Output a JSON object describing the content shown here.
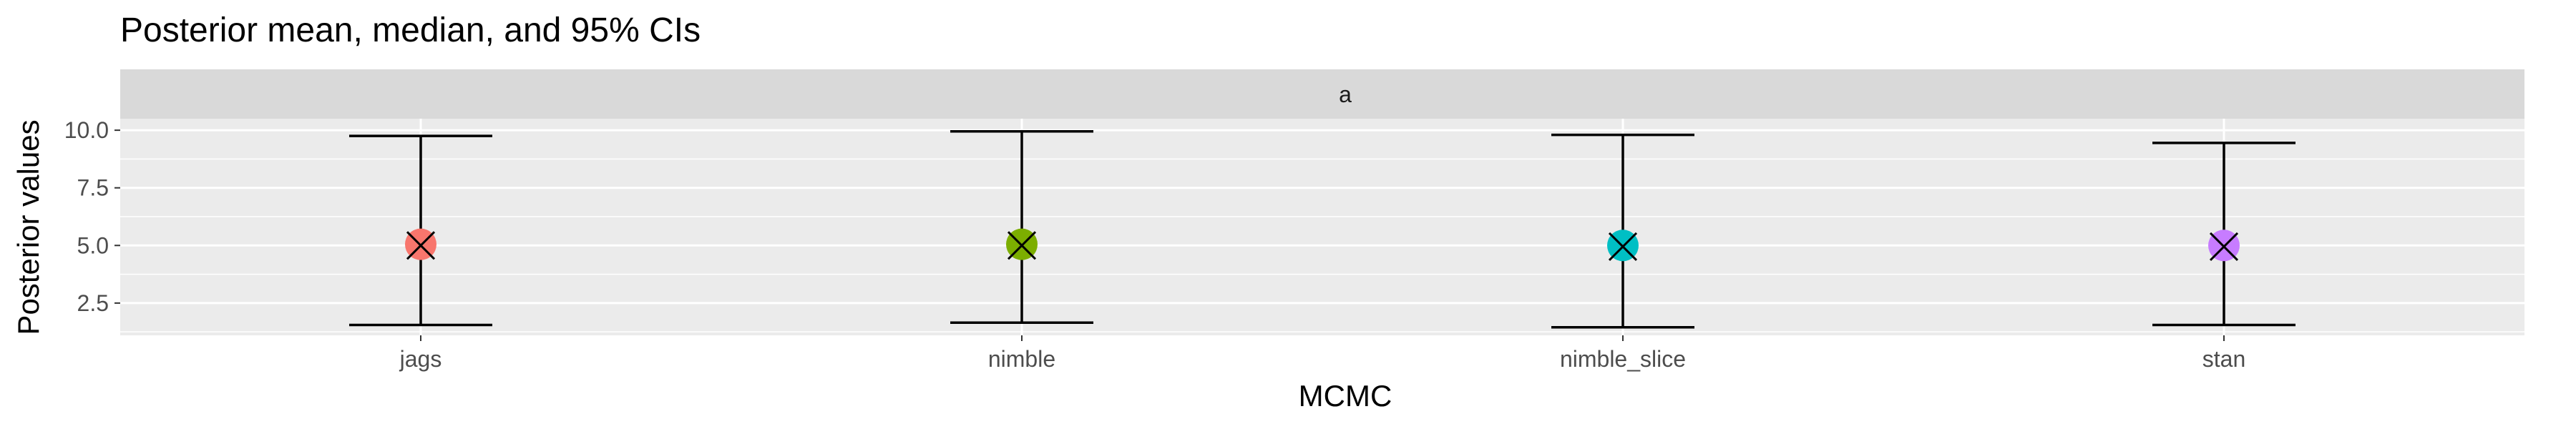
{
  "chart_data": {
    "type": "scatter",
    "title": "Posterior mean, median, and 95% CIs",
    "facet_label": "a",
    "xlabel": "MCMC",
    "ylabel": "Posterior values",
    "categories": [
      "jags",
      "nimble",
      "nimble_slice",
      "stan"
    ],
    "y_ticks": [
      "2.5",
      "5.0",
      "7.5",
      "10.0"
    ],
    "ylim": [
      1.1,
      10.5
    ],
    "grid": true,
    "legend": "none",
    "series": [
      {
        "category": "jags",
        "mean": 5.05,
        "median": 5.0,
        "lower": 1.55,
        "upper": 9.75,
        "color": "#F8766D"
      },
      {
        "category": "nimble",
        "mean": 5.05,
        "median": 5.0,
        "lower": 1.65,
        "upper": 9.95,
        "color": "#7CAE00"
      },
      {
        "category": "nimble_slice",
        "mean": 5.0,
        "median": 4.95,
        "lower": 1.45,
        "upper": 9.8,
        "color": "#00BFC4"
      },
      {
        "category": "stan",
        "mean": 5.0,
        "median": 4.95,
        "lower": 1.55,
        "upper": 9.45,
        "color": "#C77CFF"
      }
    ]
  }
}
